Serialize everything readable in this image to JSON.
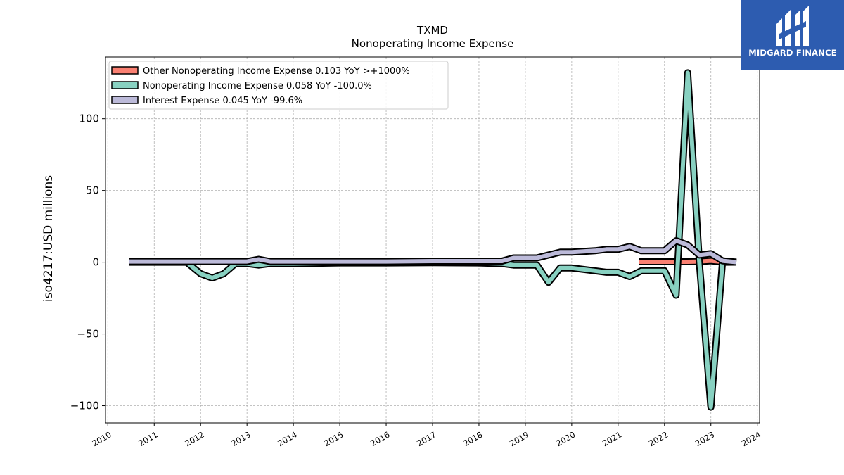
{
  "chart_data": {
    "type": "line",
    "title": "TXMD",
    "subtitle": "Nonoperating Income Expense",
    "ylabel": "iso4217:USD  millions",
    "xlim": [
      2009.95,
      2024.05
    ],
    "ylim": [
      -112,
      143
    ],
    "yticks": [
      -100,
      -50,
      0,
      50,
      100
    ],
    "yticklabels": [
      "−100",
      "−50",
      "0",
      "50",
      "100"
    ],
    "xticks": [
      2010,
      2011,
      2012,
      2013,
      2014,
      2015,
      2016,
      2017,
      2018,
      2019,
      2020,
      2021,
      2022,
      2023,
      2024
    ],
    "grid": true,
    "legend_position": "top-left",
    "series": [
      {
        "name": "Other Nonoperating Income Expense  0.103 YoY >+1000%",
        "color": "#fa8072",
        "x": [
          2021.45,
          2021.7,
          2022.0,
          2022.25,
          2022.5,
          2022.75,
          2023.0,
          2023.25,
          2023.55
        ],
        "y": [
          0.3,
          0.3,
          0.3,
          0.3,
          0.3,
          0.5,
          1.0,
          0.2,
          0.103
        ]
      },
      {
        "name": "Nonoperating Income Expense  0.058 YoY -100.0%",
        "color": "#88d1c1",
        "x": [
          2010.45,
          2011.7,
          2012.0,
          2012.25,
          2012.5,
          2012.75,
          2013.0,
          2013.25,
          2013.5,
          2014.0,
          2015.0,
          2016.0,
          2017.0,
          2018.0,
          2018.5,
          2018.75,
          2019.25,
          2019.5,
          2019.75,
          2020.0,
          2020.5,
          2020.75,
          2021.0,
          2021.25,
          2021.5,
          2022.0,
          2022.25,
          2022.5,
          2022.75,
          2023.0,
          2023.25,
          2023.55
        ],
        "y": [
          0,
          0,
          -8,
          -11,
          -8,
          -1,
          -1,
          -2,
          -1,
          -1,
          -0.5,
          -0.5,
          -0.3,
          -0.5,
          -1,
          -2,
          -2,
          -14,
          -4,
          -4,
          -6,
          -7,
          -7,
          -10,
          -6,
          -6,
          -23,
          132,
          0,
          -101,
          0,
          0.058
        ]
      },
      {
        "name": "Interest Expense  0.045 YoY -99.6%",
        "color": "#bcbad9",
        "x": [
          2010.45,
          2011.0,
          2012.0,
          2013.0,
          2013.25,
          2013.5,
          2014.0,
          2015.0,
          2016.0,
          2017.0,
          2018.0,
          2018.5,
          2018.75,
          2019.0,
          2019.25,
          2019.5,
          2019.75,
          2020.0,
          2020.5,
          2020.75,
          2021.0,
          2021.25,
          2021.5,
          2021.75,
          2022.0,
          2022.25,
          2022.5,
          2022.75,
          2023.0,
          2023.25,
          2023.55
        ],
        "y": [
          0.5,
          0.5,
          0.5,
          0.5,
          2,
          0.5,
          0.5,
          0.5,
          0.5,
          0.8,
          0.8,
          0.8,
          3,
          3,
          3,
          5,
          7,
          7,
          8,
          9,
          9,
          11,
          8,
          8,
          8,
          15,
          12,
          5,
          6,
          1,
          0.045
        ]
      }
    ]
  },
  "logo": {
    "text": "MIDGARD FINANCE",
    "background": "#2d5cb0"
  }
}
